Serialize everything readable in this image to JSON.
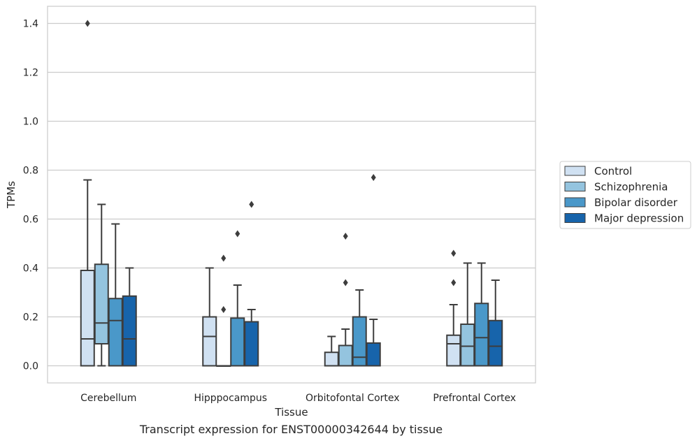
{
  "caption": "Transcript expression for ENST00000342644 by tissue",
  "chart_data": {
    "type": "box",
    "xlabel": "Tissue",
    "ylabel": "TPMs",
    "ylim": [
      -0.07,
      1.47
    ],
    "yticks": [
      0.0,
      0.2,
      0.4,
      0.6,
      0.8,
      1.0,
      1.2,
      1.4
    ],
    "grid": "horizontal",
    "legend_position": "right",
    "categories": [
      "Cerebellum",
      "Hipppocampus",
      "Orbitofontal Cortex",
      "Prefrontal Cortex"
    ],
    "series": [
      {
        "name": "Control",
        "color": "#d0e1f2",
        "boxes": [
          {
            "whislo": 0.0,
            "q1": 0.0,
            "med": 0.11,
            "q3": 0.39,
            "whishi": 0.76,
            "fliers": [
              1.4
            ]
          },
          {
            "whislo": 0.0,
            "q1": 0.0,
            "med": 0.12,
            "q3": 0.2,
            "whishi": 0.4,
            "fliers": []
          },
          {
            "whislo": 0.0,
            "q1": 0.0,
            "med": 0.0,
            "q3": 0.055,
            "whishi": 0.12,
            "fliers": []
          },
          {
            "whislo": 0.0,
            "q1": 0.0,
            "med": 0.09,
            "q3": 0.125,
            "whishi": 0.25,
            "fliers": [
              0.34,
              0.46
            ]
          }
        ]
      },
      {
        "name": "Schizophrenia",
        "color": "#94c4df",
        "boxes": [
          {
            "whislo": 0.0,
            "q1": 0.09,
            "med": 0.175,
            "q3": 0.415,
            "whishi": 0.66,
            "fliers": []
          },
          {
            "whislo": 0.0,
            "q1": 0.0,
            "med": 0.0,
            "q3": 0.0,
            "whishi": 0.0,
            "fliers": [
              0.23,
              0.44
            ]
          },
          {
            "whislo": 0.0,
            "q1": 0.0,
            "med": 0.0,
            "q3": 0.083,
            "whishi": 0.15,
            "fliers": [
              0.34,
              0.53
            ]
          },
          {
            "whislo": 0.0,
            "q1": 0.0,
            "med": 0.08,
            "q3": 0.17,
            "whishi": 0.42,
            "fliers": []
          }
        ]
      },
      {
        "name": "Bipolar disorder",
        "color": "#4a98c9",
        "boxes": [
          {
            "whislo": 0.0,
            "q1": 0.0,
            "med": 0.185,
            "q3": 0.275,
            "whishi": 0.58,
            "fliers": []
          },
          {
            "whislo": 0.0,
            "q1": 0.0,
            "med": 0.0,
            "q3": 0.195,
            "whishi": 0.33,
            "fliers": [
              0.54
            ]
          },
          {
            "whislo": 0.0,
            "q1": 0.0,
            "med": 0.035,
            "q3": 0.2,
            "whishi": 0.31,
            "fliers": []
          },
          {
            "whislo": 0.0,
            "q1": 0.0,
            "med": 0.115,
            "q3": 0.255,
            "whishi": 0.42,
            "fliers": []
          }
        ]
      },
      {
        "name": "Major depression",
        "color": "#1764ab",
        "boxes": [
          {
            "whislo": 0.0,
            "q1": 0.0,
            "med": 0.11,
            "q3": 0.285,
            "whishi": 0.4,
            "fliers": []
          },
          {
            "whislo": 0.0,
            "q1": 0.0,
            "med": 0.0,
            "q3": 0.18,
            "whishi": 0.23,
            "fliers": [
              0.66
            ]
          },
          {
            "whislo": 0.0,
            "q1": 0.0,
            "med": 0.0,
            "q3": 0.093,
            "whishi": 0.19,
            "fliers": [
              0.77
            ]
          },
          {
            "whislo": 0.0,
            "q1": 0.0,
            "med": 0.08,
            "q3": 0.185,
            "whishi": 0.35,
            "fliers": []
          }
        ]
      }
    ]
  }
}
